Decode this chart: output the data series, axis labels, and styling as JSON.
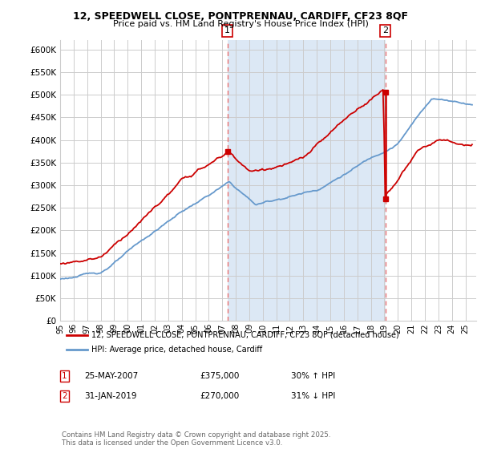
{
  "title1": "12, SPEEDWELL CLOSE, PONTPRENNAU, CARDIFF, CF23 8QF",
  "title2": "Price paid vs. HM Land Registry's House Price Index (HPI)",
  "legend_line1": "12, SPEEDWELL CLOSE, PONTPRENNAU, CARDIFF, CF23 8QF (detached house)",
  "legend_line2": "HPI: Average price, detached house, Cardiff",
  "annotation1_date": "25-MAY-2007",
  "annotation1_price": "£375,000",
  "annotation1_hpi": "30% ↑ HPI",
  "annotation1_year": 2007.38,
  "annotation1_value": 375000,
  "annotation2_date": "31-JAN-2019",
  "annotation2_price": "£270,000",
  "annotation2_hpi": "31% ↓ HPI",
  "annotation2_year": 2019.08,
  "annotation2_value": 270000,
  "annotation2_peak": 505000,
  "footer": "Contains HM Land Registry data © Crown copyright and database right 2025.\nThis data is licensed under the Open Government Licence v3.0.",
  "ylim": [
    0,
    620000
  ],
  "yticks": [
    0,
    50000,
    100000,
    150000,
    200000,
    250000,
    300000,
    350000,
    400000,
    450000,
    500000,
    550000,
    600000
  ],
  "fig_bg": "#ffffff",
  "plot_bg": "#ffffff",
  "shade_bg": "#dce8f5",
  "red_color": "#cc0000",
  "blue_color": "#6699cc",
  "grid_color": "#cccccc",
  "dashed_vline_color": "#e87070"
}
